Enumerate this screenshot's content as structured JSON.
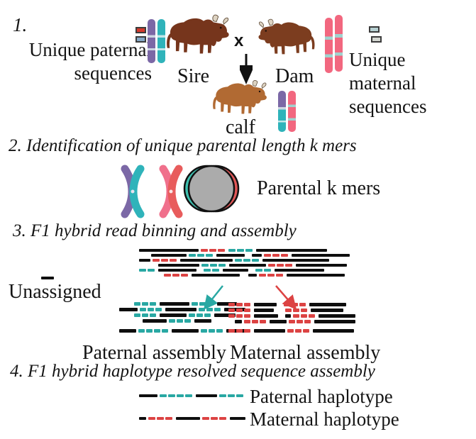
{
  "figure": {
    "type": "trio-binning-workflow-diagram",
    "background": "#ffffff"
  },
  "colors": {
    "teal": "#29a8a3",
    "red": "#dc4343",
    "purple": "#7b68a6",
    "pink": "#f2677f",
    "venn_gray": "#ababab",
    "sire_brown": "#76351c",
    "dam_brown": "#7c3d1f",
    "calf_brown": "#b16a33",
    "paternal_box_red": "#d4392c",
    "paternal_box_blue": "#85a8c6",
    "maternal_box_teal": "#b7d1d3",
    "maternal_box_gray": "#d5d8d2",
    "black": "#0e0e0e"
  },
  "step1": {
    "number": "1.",
    "paternal_label_line1": "Unique paternal",
    "paternal_label_line2": "sequences",
    "sire_label": "Sire",
    "cross_symbol": "x",
    "dam_label": "Dam",
    "calf_label": "calf",
    "maternal_label_line1": "Unique maternal",
    "maternal_label_line2": "sequences"
  },
  "step2": {
    "heading": "2. Identification of unique parental length k mers",
    "kmer_label": "Parental k mers"
  },
  "step3": {
    "heading": "3. F1 hybrid read binning and assembly",
    "unassigned_label": "Unassigned",
    "paternal_assembly_label": "Paternal assembly",
    "maternal_assembly_label": "Maternal assembly"
  },
  "step4": {
    "heading": "4. F1 hybrid haplotype resolved sequence assembly",
    "paternal_haplotype_label": "Paternal haplotype",
    "maternal_haplotype_label": "Maternal haplotype"
  },
  "reads": {
    "pool": [
      [
        [
          "b",
          84
        ],
        [
          "r",
          3
        ],
        [
          "t",
          3
        ],
        [
          "b",
          100
        ]
      ],
      [
        [
          "g",
          14
        ],
        [
          "b",
          50
        ],
        [
          "t",
          3
        ],
        [
          "b",
          40
        ],
        [
          "g",
          4
        ],
        [
          "b",
          14
        ],
        [
          "r",
          3
        ],
        [
          "b",
          82
        ]
      ],
      [
        [
          "b",
          16
        ],
        [
          "r",
          3
        ],
        [
          "b",
          74
        ],
        [
          "t",
          3
        ],
        [
          "b",
          94
        ]
      ],
      [
        [
          "g",
          24
        ],
        [
          "b",
          58
        ],
        [
          "t",
          3
        ],
        [
          "b",
          52
        ],
        [
          "r",
          3
        ],
        [
          "b",
          72
        ]
      ],
      [
        [
          "t",
          2
        ],
        [
          "b",
          54
        ],
        [
          "g",
          4
        ],
        [
          "t",
          2
        ],
        [
          "b",
          36
        ],
        [
          "g",
          4
        ],
        [
          "t",
          2
        ],
        [
          "b",
          70
        ]
      ],
      [
        [
          "g",
          32
        ],
        [
          "r",
          3
        ],
        [
          "b",
          68
        ],
        [
          "g",
          6
        ],
        [
          "b",
          12
        ],
        [
          "r",
          3
        ],
        [
          "b",
          82
        ]
      ]
    ],
    "unassigned": [
      [
        [
          "b",
          18
        ]
      ]
    ],
    "paternal_stack": [
      [
        [
          "g",
          18
        ],
        [
          "t",
          3
        ],
        [
          "b",
          42
        ],
        [
          "t",
          3
        ],
        [
          "b",
          28
        ]
      ],
      [
        [
          "b",
          26
        ],
        [
          "t",
          3
        ],
        [
          "b",
          44
        ],
        [
          "t",
          3
        ],
        [
          "b",
          30
        ]
      ],
      [
        [
          "g",
          18
        ],
        [
          "t",
          3
        ],
        [
          "b",
          38
        ],
        [
          "t",
          3
        ],
        [
          "b",
          30
        ]
      ],
      [
        [
          "g",
          30
        ],
        [
          "b",
          34
        ],
        [
          "t",
          3
        ],
        [
          "b",
          24
        ]
      ]
    ],
    "paternal_consensus": [
      [
        [
          "b",
          24
        ],
        [
          "t",
          4
        ],
        [
          "b",
          38
        ],
        [
          "t",
          3
        ],
        [
          "b",
          26
        ]
      ]
    ],
    "maternal_stack": [
      [
        [
          "r",
          3
        ],
        [
          "b",
          32
        ],
        [
          "g",
          4
        ],
        [
          "r",
          3
        ],
        [
          "b",
          52
        ]
      ],
      [
        [
          "r",
          3
        ],
        [
          "b",
          28
        ],
        [
          "g",
          10
        ],
        [
          "r",
          3
        ],
        [
          "b",
          46
        ]
      ],
      [
        [
          "r",
          3
        ],
        [
          "b",
          34
        ],
        [
          "g",
          4
        ],
        [
          "b",
          8
        ],
        [
          "r",
          3
        ],
        [
          "b",
          52
        ]
      ],
      [
        [
          "g",
          6
        ],
        [
          "b",
          10
        ],
        [
          "r",
          3
        ],
        [
          "b",
          24
        ],
        [
          "r",
          3
        ],
        [
          "b",
          58
        ]
      ]
    ],
    "maternal_consensus": [
      [
        [
          "r",
          3
        ],
        [
          "b",
          44
        ],
        [
          "r",
          3
        ],
        [
          "b",
          58
        ]
      ]
    ],
    "paternal_haplotype_line": [
      [
        [
          "b",
          26
        ],
        [
          "t",
          4
        ],
        [
          "b",
          30
        ],
        [
          "t",
          3
        ]
      ]
    ],
    "maternal_haplotype_line": [
      [
        [
          "b",
          10
        ],
        [
          "r",
          3
        ],
        [
          "b",
          34
        ],
        [
          "r",
          3
        ],
        [
          "b",
          22
        ]
      ]
    ]
  }
}
